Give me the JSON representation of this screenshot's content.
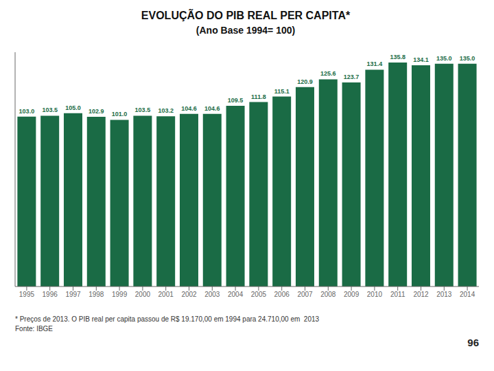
{
  "chart_data": {
    "type": "bar",
    "title": "EVOLUÇÃO DO PIB REAL PER CAPITA*",
    "subtitle": "(Ano Base 1994= 100)",
    "categories": [
      "1995",
      "1996",
      "1997",
      "1998",
      "1999",
      "2000",
      "2001",
      "2002",
      "2003",
      "2004",
      "2005",
      "2006",
      "2007",
      "2008",
      "2009",
      "2010",
      "2011",
      "2012",
      "2013",
      "2014"
    ],
    "values": [
      103.0,
      103.5,
      105.0,
      102.9,
      101.0,
      103.5,
      103.2,
      104.6,
      104.6,
      109.5,
      111.8,
      115.1,
      120.9,
      125.6,
      123.7,
      131.4,
      135.8,
      134.1,
      135.0,
      135.0
    ],
    "value_labels": [
      "103.0",
      "103.5",
      "105.0",
      "102.9",
      "101.0",
      "103.5",
      "103.2",
      "104.6",
      "104.6",
      "109.5",
      "111.8",
      "115.1",
      "120.9",
      "125.6",
      "123.7",
      "131.4",
      "135.8",
      "134.1",
      "135.0",
      "135.0"
    ],
    "color": "#1a6b45",
    "ylim": [
      0,
      142
    ],
    "grid": false,
    "data_labels": true,
    "tick_labels": "x",
    "annotations": [
      "* Preços de 2013. O PIB real per capita passou de R$ 19.170,00 em 1994 para 24.710,00 em  2013",
      "Fonte: IBGE",
      "96"
    ]
  }
}
